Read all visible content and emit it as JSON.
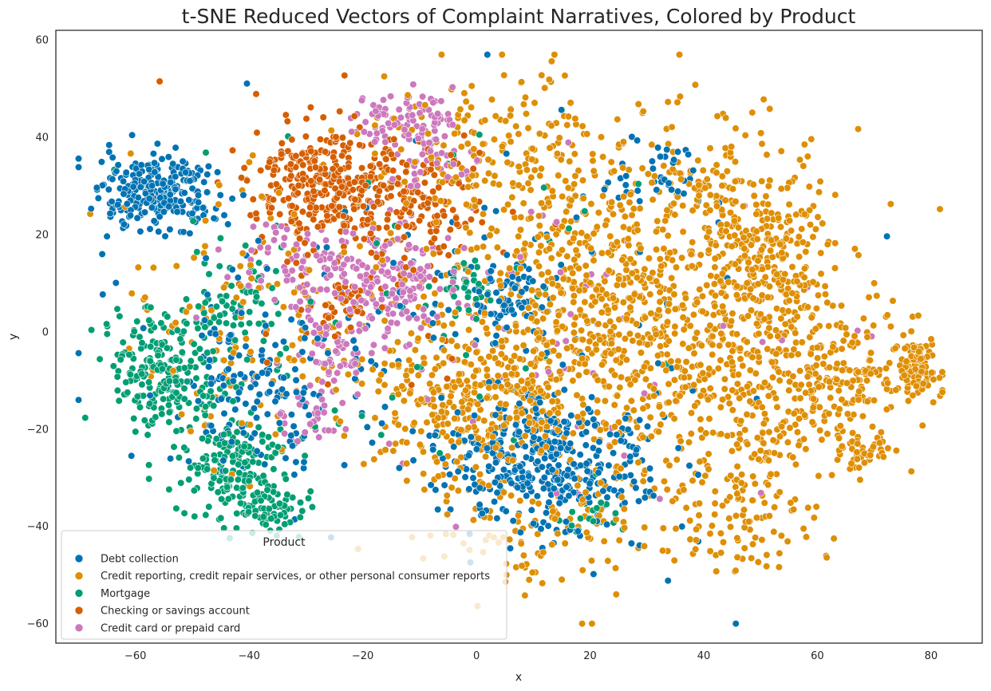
{
  "chart_data": {
    "type": "scatter",
    "title": "t-SNE Reduced Vectors of Complaint Narratives, Colored by Product",
    "xlabel": "x",
    "ylabel": "y",
    "xlim": [
      -74,
      89
    ],
    "ylim": [
      -64,
      62
    ],
    "xticks": [
      -60,
      -40,
      -20,
      0,
      20,
      40,
      60,
      80
    ],
    "yticks": [
      -60,
      -40,
      -20,
      0,
      20,
      40,
      60
    ],
    "grid": false,
    "legend": {
      "title": "Product",
      "placement": "lower-left",
      "entries": [
        "Debt collection",
        "Credit reporting, credit repair services, or other personal consumer reports",
        "Mortgage",
        "Checking or savings account",
        "Credit card or prepaid card"
      ]
    },
    "series": [
      {
        "name": "Debt collection",
        "color": "#0173b2",
        "clusters": [
          {
            "cx": -56,
            "cy": 28,
            "sx": 5,
            "sy": 4,
            "n": 260
          },
          {
            "cx": 12,
            "cy": -27,
            "sx": 9,
            "sy": 7,
            "n": 380
          },
          {
            "cx": -40,
            "cy": -12,
            "sx": 6,
            "sy": 7,
            "n": 120
          },
          {
            "cx": 5,
            "cy": 7,
            "sx": 4,
            "sy": 4,
            "n": 60
          },
          {
            "cx": 33,
            "cy": 33,
            "sx": 4,
            "sy": 4,
            "n": 40
          },
          {
            "cx": -5,
            "cy": 0,
            "sx": 25,
            "sy": 22,
            "n": 180
          }
        ]
      },
      {
        "name": "Credit reporting, credit repair services, or other personal consumer reports",
        "color": "#de8f05",
        "clusters": [
          {
            "cx": 25,
            "cy": 5,
            "sx": 17,
            "sy": 20,
            "n": 1100
          },
          {
            "cx": 52,
            "cy": -12,
            "sx": 10,
            "sy": 12,
            "n": 260
          },
          {
            "cx": 52,
            "cy": 15,
            "sx": 5,
            "sy": 6,
            "n": 160
          },
          {
            "cx": 77,
            "cy": -8,
            "sx": 2.5,
            "sy": 3,
            "n": 110
          },
          {
            "cx": 65,
            "cy": -8,
            "sx": 4,
            "sy": 6,
            "n": 110
          },
          {
            "cx": 0,
            "cy": -15,
            "sx": 10,
            "sy": 8,
            "n": 320
          },
          {
            "cx": 46,
            "cy": -40,
            "sx": 6,
            "sy": 6,
            "n": 70
          },
          {
            "cx": 68,
            "cy": -25,
            "sx": 2.5,
            "sy": 2,
            "n": 40
          },
          {
            "cx": 5,
            "cy": 38,
            "sx": 10,
            "sy": 8,
            "n": 130
          },
          {
            "cx": 45,
            "cy": 30,
            "sx": 6,
            "sy": 6,
            "n": 80
          },
          {
            "cx": -40,
            "cy": 5,
            "sx": 12,
            "sy": 15,
            "n": 140
          },
          {
            "cx": 10,
            "cy": -42,
            "sx": 10,
            "sy": 6,
            "n": 90
          }
        ]
      },
      {
        "name": "Mortgage",
        "color": "#029e73",
        "clusters": [
          {
            "cx": -55,
            "cy": -8,
            "sx": 5,
            "sy": 6,
            "n": 210
          },
          {
            "cx": -42,
            "cy": -28,
            "sx": 5,
            "sy": 6,
            "n": 200
          },
          {
            "cx": -36,
            "cy": -37,
            "sx": 3,
            "sy": 2,
            "n": 50
          },
          {
            "cx": -43,
            "cy": 5,
            "sx": 5,
            "sy": 6,
            "n": 70
          },
          {
            "cx": -2,
            "cy": 10,
            "sx": 3,
            "sy": 3,
            "n": 30
          },
          {
            "cx": 20,
            "cy": -38,
            "sx": 3,
            "sy": 2,
            "n": 22
          },
          {
            "cx": -15,
            "cy": 0,
            "sx": 22,
            "sy": 20,
            "n": 60
          }
        ]
      },
      {
        "name": "Checking or savings account",
        "color": "#d55e00",
        "clusters": [
          {
            "cx": -28,
            "cy": 31,
            "sx": 6,
            "sy": 6,
            "n": 280
          },
          {
            "cx": -12,
            "cy": 27,
            "sx": 6,
            "sy": 6,
            "n": 170
          },
          {
            "cx": -24,
            "cy": 5,
            "sx": 2.5,
            "sy": 3,
            "n": 40
          },
          {
            "cx": -20,
            "cy": 15,
            "sx": 15,
            "sy": 15,
            "n": 40
          }
        ]
      },
      {
        "name": "Credit card or prepaid card",
        "color": "#cc78bc",
        "clusters": [
          {
            "cx": -13,
            "cy": 44,
            "sx": 5,
            "sy": 3,
            "n": 90
          },
          {
            "cx": -15,
            "cy": 10,
            "sx": 5,
            "sy": 6,
            "n": 150
          },
          {
            "cx": -30,
            "cy": 14,
            "sx": 6,
            "sy": 5,
            "n": 90
          },
          {
            "cx": -25,
            "cy": -4,
            "sx": 3,
            "sy": 5,
            "n": 60
          },
          {
            "cx": -30,
            "cy": -18,
            "sx": 3,
            "sy": 3,
            "n": 25
          },
          {
            "cx": -8,
            "cy": 35,
            "sx": 4,
            "sy": 4,
            "n": 40
          },
          {
            "cx": 10,
            "cy": 0,
            "sx": 25,
            "sy": 20,
            "n": 70
          }
        ]
      }
    ]
  }
}
